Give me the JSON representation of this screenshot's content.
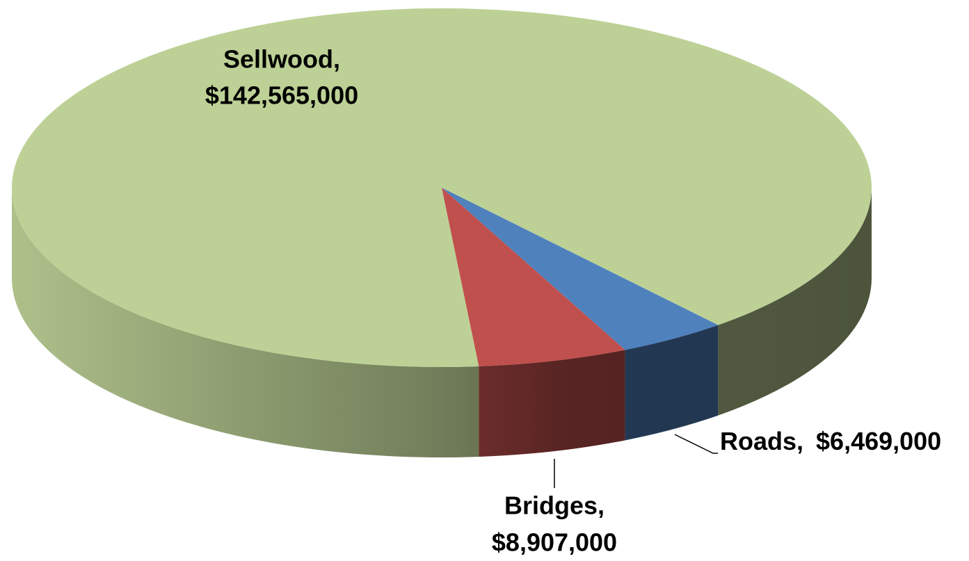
{
  "chart_data": {
    "type": "pie3d",
    "categories": [
      "Sellwood,",
      "Bridges,",
      "Roads,"
    ],
    "values": [
      142565000,
      8907000,
      6469000
    ],
    "value_labels": [
      "$142,565,000",
      "$8,907,000",
      "$6,469,000"
    ],
    "colors": [
      "#bdd196",
      "#c0504d",
      "#4f81bd"
    ]
  }
}
